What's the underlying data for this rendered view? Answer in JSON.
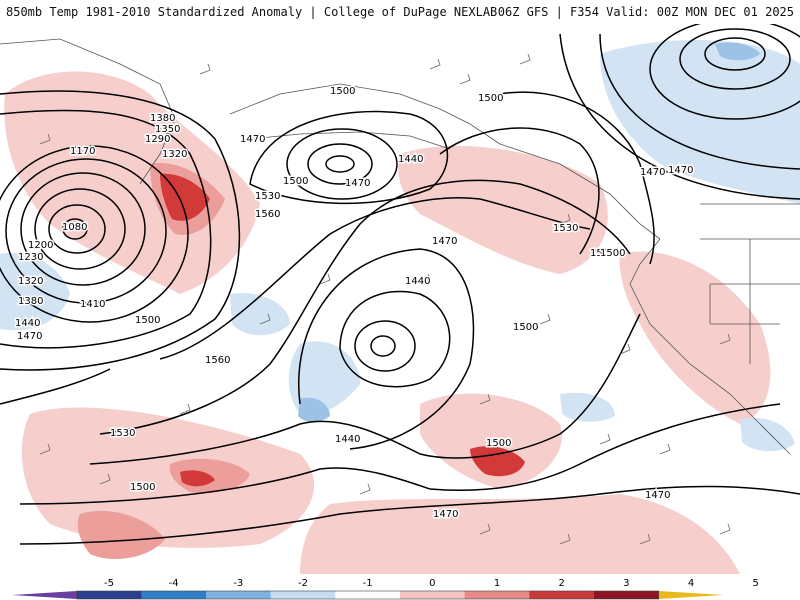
{
  "header": {
    "title_left": "850mb Temp 1981-2010 Standardized Anomaly | College of DuPage NEXLAB",
    "title_right": "06Z GFS | F354 Valid: 00Z MON DEC 01 2025"
  },
  "colorbar": {
    "ticks": [
      "-5",
      "-4",
      "-3",
      "-2",
      "-1",
      "0",
      "1",
      "2",
      "3",
      "4",
      "5"
    ],
    "colors": [
      "#6b3fa0",
      "#2b3f8c",
      "#2f7fc8",
      "#7fb2e0",
      "#c6dcf0",
      "#ffffff",
      "#f4c4c2",
      "#e58a88",
      "#c93a3a",
      "#8e1424",
      "#e8b81c"
    ]
  },
  "contour_labels": [
    "1380",
    "1350",
    "1290",
    "1320",
    "1170",
    "1080",
    "1200",
    "1230",
    "1320",
    "1380",
    "1410",
    "1440",
    "1470",
    "1500",
    "1560",
    "1530",
    "1560",
    "1500",
    "1470",
    "1440",
    "1470",
    "1500",
    "1530",
    "1500",
    "1470",
    "1440",
    "1500",
    "1440",
    "1470",
    "1500",
    "1500",
    "1530",
    "1500",
    "1470",
    "1470",
    "1470",
    "1500"
  ],
  "map": {
    "fill_colors": {
      "warm_light": "#f6cfcd",
      "warm_mid": "#ec9e9b",
      "warm_strong": "#d23a3a",
      "cool_light": "#d2e3f3",
      "cool_mid": "#9cc2e6"
    }
  }
}
